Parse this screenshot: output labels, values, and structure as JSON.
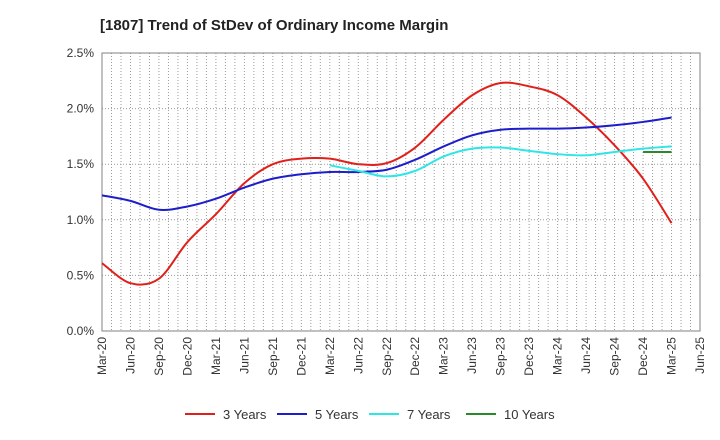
{
  "chart_data": {
    "type": "line",
    "title": "[1807]  Trend of StDev of Ordinary Income Margin",
    "xlabel": "",
    "ylabel": "",
    "categories": [
      "Mar-20",
      "Jun-20",
      "Sep-20",
      "Dec-20",
      "Mar-21",
      "Jun-21",
      "Sep-21",
      "Dec-21",
      "Mar-22",
      "Jun-22",
      "Sep-22",
      "Dec-22",
      "Mar-23",
      "Jun-23",
      "Sep-23",
      "Dec-23",
      "Mar-24",
      "Jun-24",
      "Sep-24",
      "Dec-24",
      "Mar-25",
      "Jun-25"
    ],
    "ylim": [
      0,
      2.5
    ],
    "yticks": [
      "0.0%",
      "0.5%",
      "1.0%",
      "1.5%",
      "2.0%",
      "2.5%"
    ],
    "grid": true,
    "legend_position": "bottom",
    "series": [
      {
        "name": "3 Years",
        "color": "#e0201b",
        "values": [
          0.61,
          0.43,
          0.47,
          0.8,
          1.05,
          1.33,
          1.5,
          1.55,
          1.55,
          1.5,
          1.51,
          1.65,
          1.9,
          2.12,
          2.23,
          2.2,
          2.12,
          1.92,
          1.67,
          1.37,
          0.97,
          null
        ]
      },
      {
        "name": "5 Years",
        "color": "#1d1dcc",
        "values": [
          1.22,
          1.17,
          1.09,
          1.12,
          1.19,
          1.29,
          1.37,
          1.41,
          1.43,
          1.43,
          1.45,
          1.54,
          1.66,
          1.76,
          1.81,
          1.82,
          1.82,
          1.83,
          1.85,
          1.88,
          1.92,
          null
        ]
      },
      {
        "name": "7 Years",
        "color": "#2ee6e6",
        "values": [
          null,
          null,
          null,
          null,
          null,
          null,
          null,
          null,
          1.49,
          1.44,
          1.39,
          1.44,
          1.57,
          1.64,
          1.65,
          1.62,
          1.59,
          1.58,
          1.61,
          1.64,
          1.66,
          null
        ]
      },
      {
        "name": "10 Years",
        "color": "#2a8a2a",
        "values": [
          null,
          null,
          null,
          null,
          null,
          null,
          null,
          null,
          null,
          null,
          null,
          null,
          null,
          null,
          null,
          null,
          null,
          null,
          null,
          1.61,
          1.61,
          null
        ]
      }
    ]
  }
}
